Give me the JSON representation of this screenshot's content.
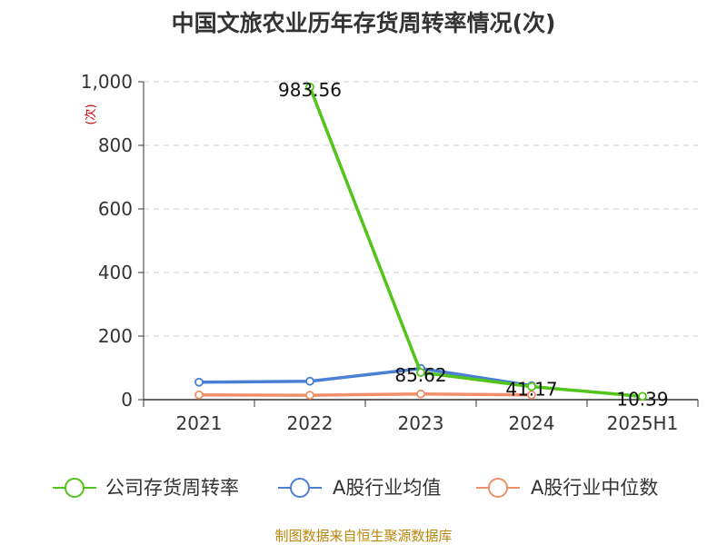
{
  "chart_data": {
    "type": "line",
    "title": "中国文旅农业历年存货周转率情况(次)",
    "ylabel": "(次)",
    "categories": [
      "2021",
      "2022",
      "2023",
      "2024",
      "2025H1"
    ],
    "ylim": [
      0,
      1000
    ],
    "yticks": [
      0,
      200,
      400,
      600,
      800,
      1000
    ],
    "ytick_labels": [
      "0",
      "200",
      "400",
      "600",
      "800",
      "1,000"
    ],
    "grid": true,
    "legend_position": "bottom",
    "series": [
      {
        "name": "公司存货周转率",
        "color": "#52c41a",
        "values": [
          null,
          983.56,
          85.62,
          41.17,
          10.39
        ],
        "labels": [
          "",
          "983.56",
          "85.62",
          "41.17",
          "10.39"
        ]
      },
      {
        "name": "A股行业均值",
        "color": "#4a7fd4",
        "values": [
          55,
          58,
          98,
          44,
          null
        ]
      },
      {
        "name": "A股行业中位数",
        "color": "#f0906a",
        "values": [
          15,
          14,
          18,
          15,
          null
        ]
      }
    ],
    "source": "制图数据来自恒生聚源数据库"
  }
}
